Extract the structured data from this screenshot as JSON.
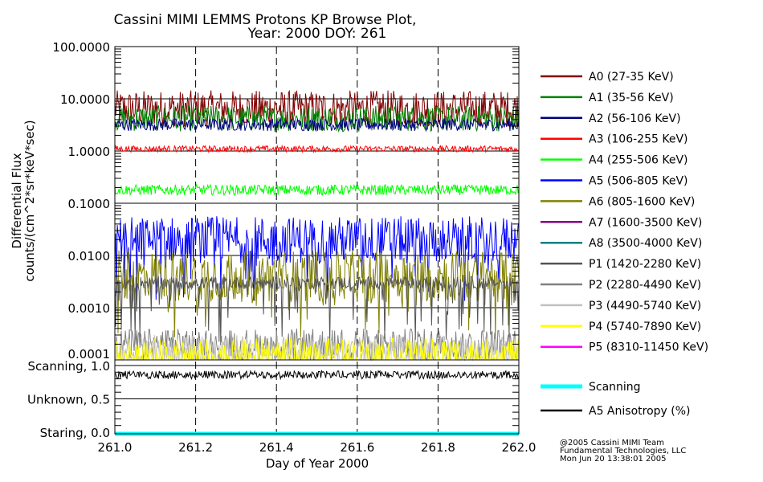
{
  "chart_data": {
    "type": "line",
    "title": "Cassini MIMI LEMMS Protons KP Browse Plot,",
    "subtitle": "Year: 2000 DOY: 261",
    "xlabel": "Day of Year 2000",
    "ylabel": "Differential Flux",
    "ylabel2": "counts/(cm^2*sr*keV*sec)",
    "xlim": [
      261.0,
      262.0
    ],
    "x_ticks": [
      "261.0",
      "261.2",
      "261.4",
      "261.6",
      "261.8",
      "262.0"
    ],
    "ylim": [
      0.0001,
      100
    ],
    "yscale": "log",
    "y_ticks": [
      "100.0000",
      "10.0000",
      "1.0000",
      "0.1000",
      "0.0100",
      "0.0010",
      "0.0001"
    ],
    "grid": "dashed vertical at x ticks, solid horizontal at decades",
    "legend_placement": "right",
    "series": [
      {
        "name": "A0 (27-35 KeV)",
        "color": "#800000",
        "level": 6.5,
        "spread": 0.35
      },
      {
        "name": "A1 (35-56 KeV)",
        "color": "#008000",
        "level": 4.2,
        "spread": 0.25
      },
      {
        "name": "A2 (56-106 KeV)",
        "color": "#000080",
        "level": 3.2,
        "spread": 0.12
      },
      {
        "name": "A3 (106-255 KeV)",
        "color": "#ff0000",
        "level": 1.1,
        "spread": 0.06
      },
      {
        "name": "A4 (255-506 KeV)",
        "color": "#00ff00",
        "level": 0.18,
        "spread": 0.1
      },
      {
        "name": "A5 (506-805 KeV)",
        "color": "#0000ff",
        "level": 0.02,
        "spread": 0.45
      },
      {
        "name": "A6 (805-1600 KeV)",
        "color": "#808000",
        "level": 0.004,
        "spread": 0.5
      },
      {
        "name": "A7 (1600-3500 KeV)",
        "color": "#800080",
        "level": null,
        "spread": 0
      },
      {
        "name": "A8 (3500-4000 KeV)",
        "color": "#008080",
        "level": null,
        "spread": 0
      },
      {
        "name": "P1 (1420-2280 KeV)",
        "color": "#555555",
        "level": 0.003,
        "spread": 0.12
      },
      {
        "name": "P2 (2280-4490 KeV)",
        "color": "#808080",
        "level": 0.0002,
        "spread": 0.3
      },
      {
        "name": "P3 (4490-5740 KeV)",
        "color": "#c0c0c0",
        "level": 0.00015,
        "spread": 0.3
      },
      {
        "name": "P4 (5740-7890 KeV)",
        "color": "#ffff00",
        "level": 0.00013,
        "spread": 0.3
      },
      {
        "name": "P5 (8310-11450 KeV)",
        "color": "#ff00ff",
        "level": null,
        "spread": 0
      }
    ],
    "lower_panel": {
      "y_ticks": [
        "Scanning, 1.0",
        "Unknown, 0.5",
        "Staring, 0.0"
      ],
      "ylim": [
        0.0,
        1.0
      ],
      "series": [
        {
          "name": "Scanning",
          "color": "#00ffff",
          "level": 0.0
        },
        {
          "name": "A5 Anisotropy (%)",
          "color": "#000000",
          "level": 0.92
        }
      ]
    }
  },
  "footer": {
    "line1": "@2005 Cassini MIMI Team",
    "line2": "Fundamental Technologies, LLC",
    "line3": "Mon Jun 20 13:38:01 2005"
  }
}
